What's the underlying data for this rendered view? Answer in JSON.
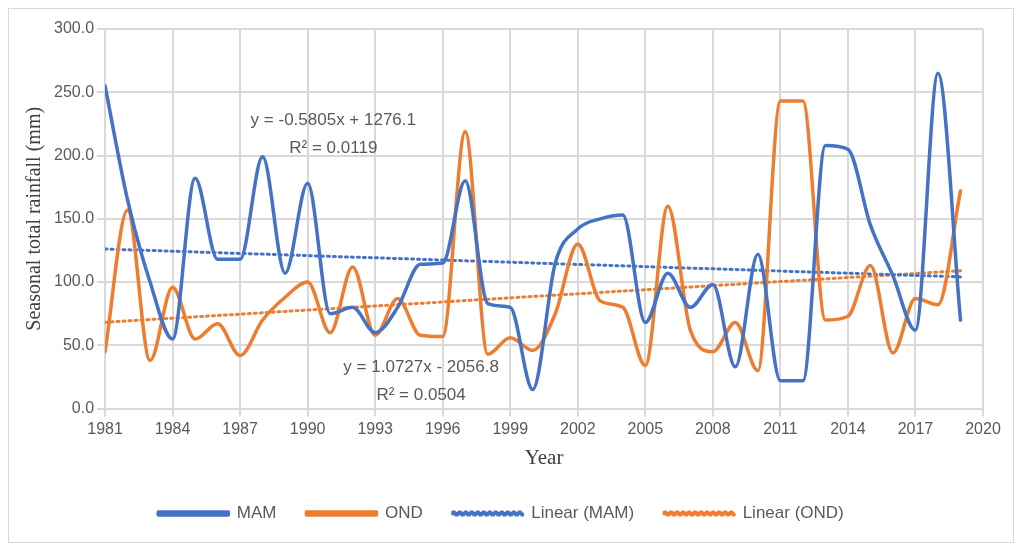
{
  "chart_data": {
    "type": "line",
    "xlabel": "Year",
    "ylabel": "Seasonal total rainfall (mm)",
    "x": [
      1981,
      1982,
      1983,
      1984,
      1985,
      1986,
      1987,
      1988,
      1989,
      1990,
      1991,
      1992,
      1993,
      1994,
      1995,
      1996,
      1997,
      1998,
      1999,
      2000,
      2001,
      2002,
      2003,
      2004,
      2005,
      2006,
      2007,
      2008,
      2009,
      2010,
      2011,
      2012,
      2013,
      2014,
      2015,
      2016,
      2017,
      2018,
      2019
    ],
    "series": [
      {
        "name": "MAM",
        "color": "#4472c4",
        "values": [
          255,
          165,
          100,
          55,
          182,
          118,
          118,
          199,
          107,
          178,
          75,
          80,
          60,
          80,
          114,
          115,
          180,
          83,
          80,
          15,
          115,
          142,
          150,
          153,
          68,
          107,
          80,
          98,
          33,
          122,
          22,
          22,
          208,
          205,
          145,
          105,
          62,
          265,
          70
        ]
      },
      {
        "name": "OND",
        "color": "#ed7d31",
        "values": [
          45,
          157,
          38,
          96,
          55,
          67,
          42,
          70,
          88,
          100,
          60,
          112,
          58,
          87,
          58,
          57,
          219,
          43,
          56,
          46,
          75,
          130,
          85,
          80,
          34,
          160,
          62,
          45,
          68,
          30,
          243,
          243,
          70,
          73,
          113,
          44,
          87,
          82,
          172
        ]
      },
      {
        "name": "Linear (MAM)",
        "color": "#4472c4",
        "type": "line",
        "line_style": "dotted",
        "values": [
          126.1,
          125.5,
          125.0,
          124.4,
          123.8,
          123.2,
          122.6,
          122.1,
          121.5,
          120.9,
          120.3,
          119.7,
          119.2,
          118.6,
          118.0,
          117.4,
          116.8,
          116.3,
          115.7,
          115.1,
          114.5,
          113.9,
          113.4,
          112.8,
          112.2,
          111.6,
          111.0,
          110.5,
          109.9,
          109.3,
          108.7,
          108.1,
          107.6,
          107.0,
          106.4,
          105.8,
          105.2,
          104.7,
          104.1
        ]
      },
      {
        "name": "Linear (OND)",
        "color": "#ed7d31",
        "type": "line",
        "line_style": "dotted",
        "values": [
          68.2,
          69.3,
          70.4,
          71.4,
          72.5,
          73.6,
          74.6,
          75.7,
          76.8,
          77.9,
          78.9,
          80.0,
          81.1,
          82.1,
          83.2,
          84.3,
          85.4,
          86.4,
          87.5,
          88.6,
          89.7,
          90.7,
          91.8,
          92.9,
          93.9,
          95.0,
          96.1,
          97.2,
          98.2,
          99.3,
          100.4,
          101.4,
          102.5,
          103.6,
          104.6,
          105.7,
          106.8,
          107.9,
          108.9
        ]
      }
    ],
    "xlim": [
      1981,
      2020
    ],
    "xticks": [
      1981,
      1984,
      1987,
      1990,
      1993,
      1996,
      1999,
      2002,
      2005,
      2008,
      2011,
      2014,
      2017,
      2020
    ],
    "ylim": [
      0,
      300
    ],
    "yticks": [
      {
        "value": 0,
        "label": "0.0"
      },
      {
        "value": 50,
        "label": "50.0"
      },
      {
        "value": 100,
        "label": "100.0"
      },
      {
        "value": 150,
        "label": "150.0"
      },
      {
        "value": 200,
        "label": "200.0"
      },
      {
        "value": 250,
        "label": "250.0"
      },
      {
        "value": 300,
        "label": "300.0"
      }
    ],
    "grid": true,
    "legend": "bottom",
    "marker": "none",
    "line_style": "solid",
    "annotations": [
      "y = -0.5805x + 1276.1",
      "R² = 0.0119",
      "y = 1.0727x - 2056.8",
      "R² = 0.0504"
    ]
  }
}
